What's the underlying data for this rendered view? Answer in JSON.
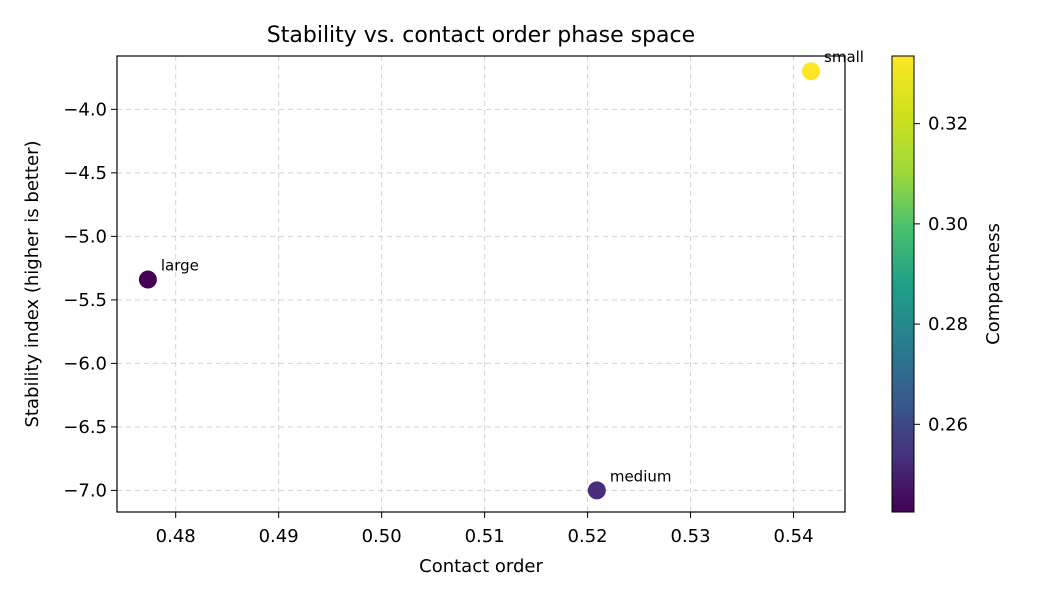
{
  "chart_data": {
    "type": "scatter",
    "title": "Stability vs. contact order phase space",
    "xlabel": "Contact order",
    "ylabel": "Stability index (higher is better)",
    "xlim": [
      0.4743,
      0.545
    ],
    "ylim": [
      -7.17,
      -3.58
    ],
    "xticks": [
      0.48,
      0.49,
      0.5,
      0.51,
      0.52,
      0.53,
      0.54
    ],
    "xtick_labels": [
      "0.48",
      "0.49",
      "0.50",
      "0.51",
      "0.52",
      "0.53",
      "0.54"
    ],
    "yticks": [
      -4.0,
      -4.5,
      -5.0,
      -5.5,
      -6.0,
      -6.5,
      -7.0
    ],
    "ytick_labels": [
      "−4.0",
      "−4.5",
      "−5.0",
      "−5.5",
      "−6.0",
      "−6.5",
      "−7.0"
    ],
    "grid": true,
    "points": [
      {
        "label": "large",
        "x": 0.4773,
        "y": -5.34,
        "compactness": 0.2425,
        "color": "#440154"
      },
      {
        "label": "medium",
        "x": 0.5209,
        "y": -7.0,
        "compactness": 0.252,
        "color": "#472c7a"
      },
      {
        "label": "small",
        "x": 0.5417,
        "y": -3.7,
        "compactness": 0.3335,
        "color": "#fde725"
      }
    ],
    "colorbar": {
      "label": "Compactness",
      "colormap": "viridis",
      "range": [
        0.2425,
        0.3335
      ],
      "ticks": [
        0.26,
        0.28,
        0.3,
        0.32
      ],
      "tick_labels": [
        "0.26",
        "0.28",
        "0.30",
        "0.32"
      ]
    }
  }
}
